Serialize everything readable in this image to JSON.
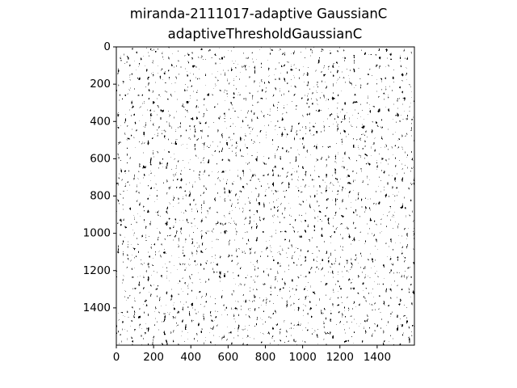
{
  "chart_data": {
    "type": "image",
    "title": "miranda-2111017-adaptive GaussianC",
    "subtitle": "adaptiveThresholdGaussianC",
    "xlim": [
      0,
      1600
    ],
    "ylim": [
      1600,
      0
    ],
    "xticks": [
      0,
      200,
      400,
      600,
      800,
      1000,
      1200,
      1400
    ],
    "yticks": [
      0,
      200,
      400,
      600,
      800,
      1000,
      1200,
      1400
    ]
  }
}
